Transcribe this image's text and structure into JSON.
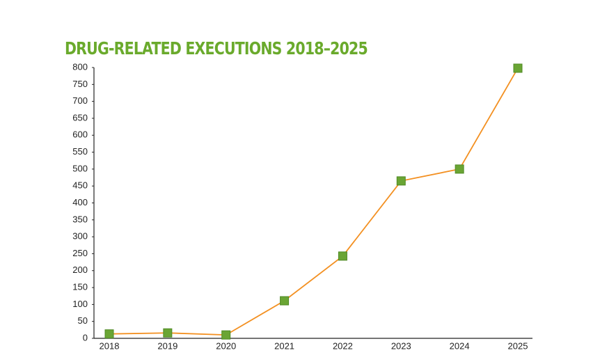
{
  "chart_data": {
    "type": "line",
    "title": "DRUG-RELATED EXECUTIONS 2018–2025",
    "categories": [
      "2018",
      "2019",
      "2020",
      "2021",
      "2022",
      "2023",
      "2024",
      "2025"
    ],
    "series": [
      {
        "values": [
          13,
          16,
          10,
          111,
          243,
          465,
          500,
          798
        ],
        "color": "#f39021",
        "marker_color": "#6aa534"
      }
    ],
    "ylim": [
      0,
      800
    ],
    "yticks": [
      0,
      50,
      100,
      150,
      200,
      250,
      300,
      350,
      400,
      450,
      500,
      550,
      600,
      650,
      700,
      750,
      800
    ],
    "title_color": "#6aaa2c"
  }
}
